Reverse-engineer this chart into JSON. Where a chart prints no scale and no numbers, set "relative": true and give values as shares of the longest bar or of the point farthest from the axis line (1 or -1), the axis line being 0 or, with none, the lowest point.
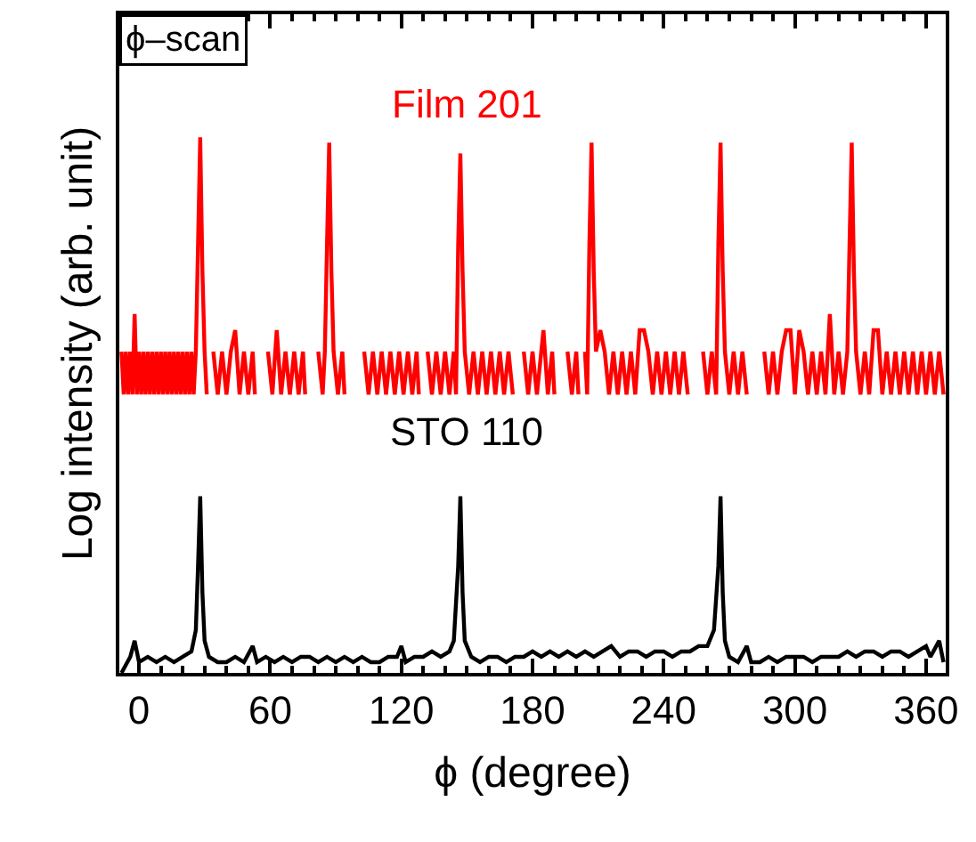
{
  "chart_data": {
    "type": "line",
    "relative": true,
    "xlabel": "ϕ (degree)",
    "ylabel": "Log intensity (arb. unit)",
    "annotations": [
      "ϕ–scan"
    ],
    "xlim": [
      -9,
      369
    ],
    "xticks": [
      0,
      60,
      120,
      180,
      240,
      300,
      360
    ],
    "marker": "none",
    "line_style": "solid",
    "series": [
      {
        "name": "Film 201",
        "color": "#ff0000",
        "x": [
          -8,
          -7,
          -6,
          -5,
          -4,
          -3,
          -2,
          -1,
          0,
          1,
          2,
          3,
          4,
          5,
          6,
          7,
          8,
          9,
          10,
          11,
          12,
          13,
          14,
          15,
          16,
          17,
          18,
          19,
          20,
          21,
          22,
          23,
          24,
          25,
          26,
          27,
          28,
          29,
          30,
          31,
          32,
          34,
          36,
          38,
          40,
          42,
          44,
          46,
          48,
          50,
          52,
          53,
          56,
          59,
          61,
          63,
          65,
          67,
          69,
          71,
          73,
          75,
          76,
          79,
          82,
          84,
          85,
          86,
          87,
          88,
          89,
          91,
          93,
          94,
          99,
          103,
          105,
          107,
          109,
          111,
          113,
          115,
          117,
          119,
          121,
          123,
          125,
          127,
          128,
          130,
          132,
          134,
          136,
          138,
          140,
          142,
          144,
          145,
          146,
          147,
          148,
          149,
          151,
          153,
          155,
          157,
          159,
          161,
          163,
          165,
          167,
          169,
          171,
          174,
          176,
          178,
          180,
          182,
          185,
          187,
          189,
          190,
          193,
          196,
          198,
          200,
          201,
          202,
          204,
          205,
          206,
          207,
          208,
          209,
          211,
          213,
          215,
          217,
          219,
          221,
          223,
          225,
          227,
          229,
          231,
          233,
          235,
          237,
          239,
          241,
          243,
          245,
          247,
          249,
          251,
          254,
          258,
          260,
          262,
          264,
          265,
          266,
          267,
          268,
          270,
          272,
          274,
          276,
          278,
          282,
          286,
          288,
          290,
          292,
          294,
          296,
          298,
          300,
          302,
          304,
          306,
          308,
          310,
          312,
          314,
          316,
          318,
          320,
          322,
          324,
          325,
          326,
          327,
          328,
          330,
          332,
          334,
          336,
          338,
          340,
          342,
          344,
          346,
          348,
          350,
          352,
          354,
          356,
          358,
          360,
          362,
          364,
          366,
          368
        ],
        "values": [
          0.6,
          0.52,
          0.6,
          0.52,
          0.6,
          0.52,
          0.67,
          0.52,
          0.6,
          0.52,
          0.6,
          0.52,
          0.6,
          0.52,
          0.6,
          0.52,
          0.6,
          0.52,
          0.6,
          0.52,
          0.6,
          0.52,
          0.6,
          0.52,
          0.6,
          0.52,
          0.6,
          0.52,
          0.6,
          0.52,
          0.6,
          0.52,
          0.6,
          0.52,
          0.6,
          0.8,
          1.0,
          0.75,
          0.6,
          0.52,
          null,
          0.6,
          0.52,
          0.6,
          0.52,
          0.6,
          0.64,
          0.52,
          0.6,
          0.52,
          0.6,
          0.52,
          null,
          0.6,
          0.52,
          0.64,
          0.52,
          0.6,
          0.52,
          0.6,
          0.52,
          0.6,
          0.52,
          null,
          0.6,
          0.52,
          0.6,
          0.8,
          0.99,
          0.75,
          0.6,
          0.52,
          0.6,
          0.52,
          null,
          0.6,
          0.52,
          0.6,
          0.52,
          0.6,
          0.52,
          0.6,
          0.52,
          0.6,
          0.52,
          0.6,
          0.52,
          0.6,
          0.52,
          null,
          0.6,
          0.52,
          0.6,
          0.52,
          0.6,
          0.52,
          0.6,
          0.52,
          0.8,
          0.97,
          0.75,
          0.6,
          0.52,
          0.6,
          0.52,
          0.6,
          0.52,
          0.6,
          0.52,
          0.6,
          0.52,
          0.6,
          0.52,
          null,
          0.6,
          0.52,
          0.6,
          0.52,
          0.64,
          0.52,
          0.6,
          0.52,
          null,
          0.6,
          0.52,
          0.6,
          0.52,
          null,
          0.6,
          0.52,
          0.8,
          0.99,
          0.75,
          0.6,
          0.64,
          0.6,
          0.52,
          0.6,
          0.52,
          0.6,
          0.52,
          0.6,
          0.52,
          0.64,
          0.64,
          0.6,
          0.52,
          0.6,
          0.52,
          0.6,
          0.52,
          0.6,
          0.52,
          0.6,
          0.52,
          null,
          0.6,
          0.52,
          0.6,
          0.52,
          0.8,
          0.99,
          0.75,
          0.6,
          0.52,
          0.6,
          0.52,
          0.6,
          0.52,
          null,
          0.6,
          0.52,
          0.6,
          0.52,
          0.6,
          0.64,
          0.64,
          0.52,
          0.64,
          0.6,
          0.52,
          0.6,
          0.52,
          0.6,
          0.52,
          0.67,
          0.52,
          0.6,
          0.52,
          0.6,
          0.8,
          0.99,
          0.75,
          0.6,
          0.52,
          0.6,
          0.52,
          0.64,
          0.64,
          0.52,
          0.6,
          0.52,
          0.6,
          0.52,
          0.6,
          0.52,
          0.6,
          0.52,
          0.6,
          0.52,
          0.6,
          0.52,
          0.6,
          0.52
        ]
      },
      {
        "name": "STO 110",
        "color": "#000000",
        "x": [
          -8,
          -4,
          -2,
          0,
          4,
          8,
          12,
          16,
          20,
          24,
          26,
          27,
          28,
          29,
          30,
          32,
          36,
          40,
          44,
          48,
          52,
          54,
          58,
          62,
          66,
          70,
          74,
          78,
          82,
          86,
          90,
          94,
          98,
          102,
          106,
          110,
          114,
          118,
          120,
          122,
          126,
          130,
          134,
          138,
          142,
          144,
          146,
          147,
          148,
          149,
          152,
          156,
          160,
          164,
          168,
          172,
          176,
          180,
          184,
          188,
          192,
          196,
          200,
          204,
          208,
          212,
          216,
          220,
          224,
          228,
          232,
          236,
          240,
          244,
          248,
          252,
          256,
          260,
          263,
          265,
          266,
          267,
          268,
          270,
          274,
          278,
          280,
          284,
          288,
          292,
          296,
          300,
          304,
          308,
          312,
          316,
          320,
          324,
          328,
          332,
          336,
          340,
          344,
          348,
          352,
          356,
          360,
          362,
          366,
          368
        ],
        "values": [
          0,
          0.03,
          0.06,
          0.02,
          0.03,
          0.02,
          0.03,
          0.02,
          0.03,
          0.04,
          0.08,
          0.2,
          0.33,
          0.15,
          0.06,
          0.03,
          0.02,
          0.02,
          0.03,
          0.02,
          0.05,
          0.02,
          0.03,
          0.02,
          0.03,
          0.02,
          0.03,
          0.03,
          0.02,
          0.03,
          0.02,
          0.03,
          0.02,
          0.03,
          0.02,
          0.02,
          0.03,
          0.03,
          0.05,
          0.02,
          0.03,
          0.03,
          0.04,
          0.03,
          0.04,
          0.06,
          0.2,
          0.33,
          0.15,
          0.06,
          0.03,
          0.02,
          0.03,
          0.03,
          0.02,
          0.03,
          0.03,
          0.04,
          0.03,
          0.04,
          0.03,
          0.04,
          0.03,
          0.04,
          0.03,
          0.04,
          0.05,
          0.03,
          0.04,
          0.04,
          0.03,
          0.04,
          0.04,
          0.03,
          0.04,
          0.04,
          0.05,
          0.05,
          0.08,
          0.2,
          0.33,
          0.15,
          0.06,
          0.03,
          0.02,
          0.05,
          0.02,
          0.02,
          0.03,
          0.02,
          0.03,
          0.03,
          0.03,
          0.02,
          0.03,
          0.03,
          0.03,
          0.04,
          0.03,
          0.04,
          0.04,
          0.03,
          0.04,
          0.04,
          0.03,
          0.04,
          0.05,
          0.03,
          0.06,
          0.02
        ]
      }
    ]
  }
}
